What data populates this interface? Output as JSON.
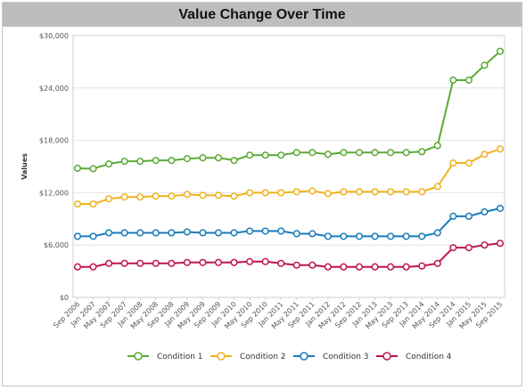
{
  "chart_data": {
    "type": "line",
    "title": "Value Change Over Time",
    "xlabel": "",
    "ylabel": "Values",
    "ylim": [
      0,
      30000
    ],
    "yticks": [
      "$0",
      "$6,000",
      "$12,000",
      "$18,000",
      "$24,000",
      "$30,000"
    ],
    "ytick_values": [
      0,
      6000,
      12000,
      18000,
      24000,
      30000
    ],
    "grid": "horizontal",
    "legend_position": "bottom",
    "categories": [
      "Sep 2006",
      "Jan 2007",
      "May 2007",
      "Sep 2007",
      "Jan 2008",
      "May 2008",
      "Sep 2008",
      "Jan 2009",
      "May 2009",
      "Sep 2009",
      "Jan 2010",
      "May 2010",
      "Sep 2010",
      "Jan 2011",
      "May 2011",
      "Sep 2011",
      "Jan 2012",
      "May 2012",
      "Sep 2012",
      "Jan 2013",
      "May 2013",
      "Sep 2013",
      "Jan 2014",
      "May 2014",
      "Sep 2014",
      "Jan 2015",
      "May 2015",
      "Sep 2015"
    ],
    "series": [
      {
        "name": "Condition 1",
        "color": "#5aaa35",
        "values": [
          14800,
          14750,
          15300,
          15600,
          15600,
          15700,
          15700,
          15900,
          16000,
          16000,
          15700,
          16300,
          16300,
          16300,
          16600,
          16600,
          16400,
          16600,
          16600,
          16600,
          16600,
          16600,
          16700,
          17400,
          24900,
          24900,
          26600,
          28200
        ]
      },
      {
        "name": "Condition 2",
        "color": "#f0b21d",
        "values": [
          10700,
          10700,
          11300,
          11500,
          11500,
          11600,
          11600,
          11800,
          11700,
          11700,
          11600,
          12000,
          12000,
          12000,
          12100,
          12200,
          11900,
          12100,
          12100,
          12100,
          12100,
          12100,
          12100,
          12700,
          15400,
          15400,
          16400,
          17000
        ]
      },
      {
        "name": "Condition 3",
        "color": "#1a7cb8",
        "values": [
          7000,
          7000,
          7400,
          7400,
          7400,
          7400,
          7400,
          7500,
          7400,
          7400,
          7400,
          7600,
          7600,
          7600,
          7300,
          7300,
          7000,
          7000,
          7000,
          7000,
          7000,
          7000,
          7000,
          7400,
          9300,
          9300,
          9800,
          10200
        ]
      },
      {
        "name": "Condition 4",
        "color": "#c0154a",
        "values": [
          3500,
          3500,
          3900,
          3900,
          3900,
          3900,
          3900,
          4000,
          4000,
          4000,
          4000,
          4100,
          4100,
          3900,
          3700,
          3700,
          3500,
          3500,
          3500,
          3500,
          3500,
          3500,
          3600,
          3900,
          5700,
          5700,
          6000,
          6200
        ]
      }
    ]
  }
}
